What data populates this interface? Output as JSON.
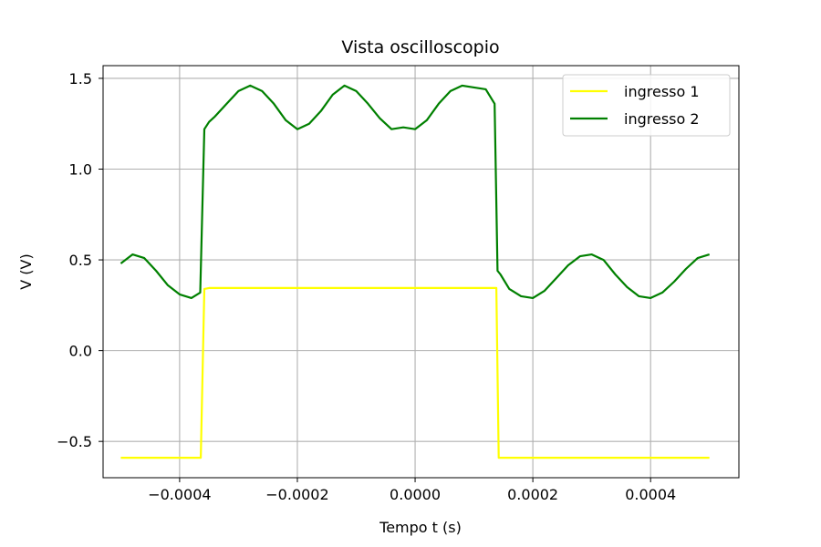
{
  "chart_data": {
    "type": "line",
    "title": "Vista oscilloscopio",
    "xlabel": "Tempo t (s)",
    "ylabel": "V (V)",
    "xlim": [
      -0.00053,
      0.00055
    ],
    "ylim": [
      -0.7,
      1.57
    ],
    "xticks": [
      -0.0004,
      -0.0002,
      0.0,
      0.0002,
      0.0004
    ],
    "xtick_labels": [
      "−0.0004",
      "−0.0002",
      "0.0000",
      "0.0002",
      "0.0004"
    ],
    "yticks": [
      -0.5,
      0.0,
      0.5,
      1.0,
      1.5
    ],
    "ytick_labels": [
      "−0.5",
      "0.0",
      "0.5",
      "1.0",
      "1.5"
    ],
    "grid": true,
    "legend_position": "top-right",
    "series": [
      {
        "name": "ingresso 1",
        "color": "#ffff00",
        "x": [
          -0.0005,
          -0.000364,
          -0.000358,
          -0.00035,
          0.000138,
          0.000142,
          0.0005
        ],
        "y": [
          -0.59,
          -0.59,
          0.34,
          0.345,
          0.345,
          -0.59,
          -0.59
        ]
      },
      {
        "name": "ingresso 2",
        "color": "#008000",
        "x": [
          -0.0005,
          -0.00048,
          -0.00046,
          -0.00044,
          -0.00042,
          -0.0004,
          -0.00038,
          -0.000365,
          -0.000358,
          -0.00035,
          -0.00034,
          -0.00032,
          -0.0003,
          -0.00028,
          -0.00026,
          -0.00024,
          -0.00022,
          -0.0002,
          -0.00018,
          -0.00016,
          -0.00014,
          -0.00012,
          -0.0001,
          -8e-05,
          -6e-05,
          -4e-05,
          -2e-05,
          0.0,
          2e-05,
          4e-05,
          6e-05,
          8e-05,
          0.0001,
          0.00012,
          0.000135,
          0.00014,
          0.000145,
          0.00016,
          0.00018,
          0.0002,
          0.00022,
          0.00024,
          0.00026,
          0.00028,
          0.0003,
          0.00032,
          0.00034,
          0.00036,
          0.00038,
          0.0004,
          0.00042,
          0.00044,
          0.00046,
          0.00048,
          0.0005
        ],
        "y": [
          0.48,
          0.53,
          0.51,
          0.44,
          0.36,
          0.31,
          0.29,
          0.32,
          1.22,
          1.26,
          1.29,
          1.36,
          1.43,
          1.46,
          1.43,
          1.36,
          1.27,
          1.22,
          1.25,
          1.32,
          1.41,
          1.46,
          1.43,
          1.36,
          1.28,
          1.22,
          1.23,
          1.22,
          1.27,
          1.36,
          1.43,
          1.46,
          1.45,
          1.44,
          1.36,
          0.44,
          0.42,
          0.34,
          0.3,
          0.29,
          0.33,
          0.4,
          0.47,
          0.52,
          0.53,
          0.5,
          0.42,
          0.35,
          0.3,
          0.29,
          0.32,
          0.38,
          0.45,
          0.51,
          0.53
        ]
      }
    ]
  }
}
